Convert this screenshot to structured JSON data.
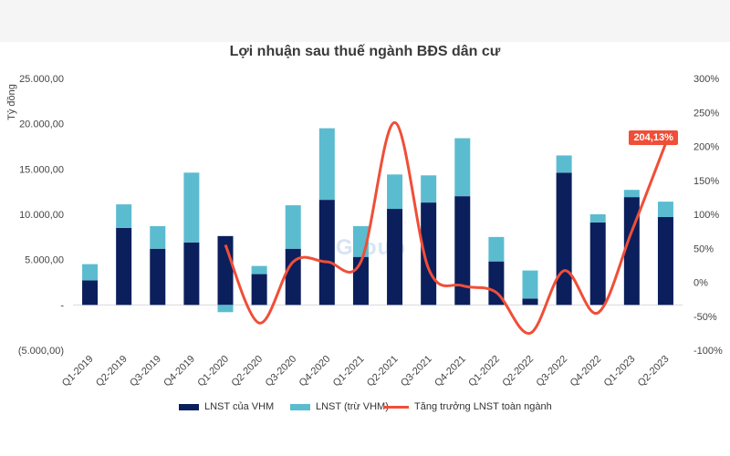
{
  "title": "Lợi nhuận sau thuế ngành BĐS dân cư",
  "watermark": "Group",
  "chart_data": {
    "type": "bar",
    "stacked": true,
    "title": "Lợi nhuận sau thuế ngành BĐS dân cư",
    "ylabel": "Tỷ đồng",
    "categories": [
      "Q1-2019",
      "Q2-2019",
      "Q3-2019",
      "Q4-2019",
      "Q1-2020",
      "Q2-2020",
      "Q3-2020",
      "Q4-2020",
      "Q1-2021",
      "Q2-2021",
      "Q3-2021",
      "Q4-2021",
      "Q1-2022",
      "Q2-2022",
      "Q3-2022",
      "Q4-2022",
      "Q1-2023",
      "Q2-2023"
    ],
    "ylim": [
      -5000,
      25000
    ],
    "y2lim": [
      -100,
      300
    ],
    "yticks": [
      25000,
      20000,
      15000,
      10000,
      5000,
      0,
      -5000
    ],
    "ytick_labels": [
      "25.000,00",
      "20.000,00",
      "15.000,00",
      "10.000,00",
      "5.000,00",
      "-",
      "(5.000,00)"
    ],
    "y2ticks": [
      300,
      250,
      200,
      150,
      100,
      50,
      0,
      -50,
      -100
    ],
    "y2tick_labels": [
      "300%",
      "250%",
      "200%",
      "150%",
      "100%",
      "50%",
      "0%",
      "-50%",
      "-100%"
    ],
    "series": [
      {
        "name": "LNST của VHM",
        "type": "bar",
        "color": "#0b1f5c",
        "values": [
          2700,
          8500,
          6200,
          6900,
          7600,
          3400,
          6200,
          11600,
          5300,
          10600,
          11300,
          12000,
          4800,
          700,
          14600,
          9100,
          11900,
          9700
        ]
      },
      {
        "name": "LNST (trừ VHM)",
        "type": "bar",
        "color": "#5bbcd0",
        "values": [
          1800,
          2600,
          2500,
          7700,
          -800,
          900,
          4800,
          7900,
          3400,
          3800,
          3000,
          6400,
          2700,
          3100,
          1900,
          900,
          800,
          1700
        ]
      },
      {
        "name": "Tăng trưởng LNST toàn ngành",
        "type": "line",
        "axis": "right",
        "color": "#f04e37",
        "values": [
          null,
          null,
          null,
          null,
          55,
          -60,
          30,
          30,
          30,
          235,
          20,
          -5,
          -15,
          -75,
          17,
          -45,
          75,
          204.13
        ]
      }
    ],
    "annotation": "204,13%",
    "legend": "bottom"
  }
}
